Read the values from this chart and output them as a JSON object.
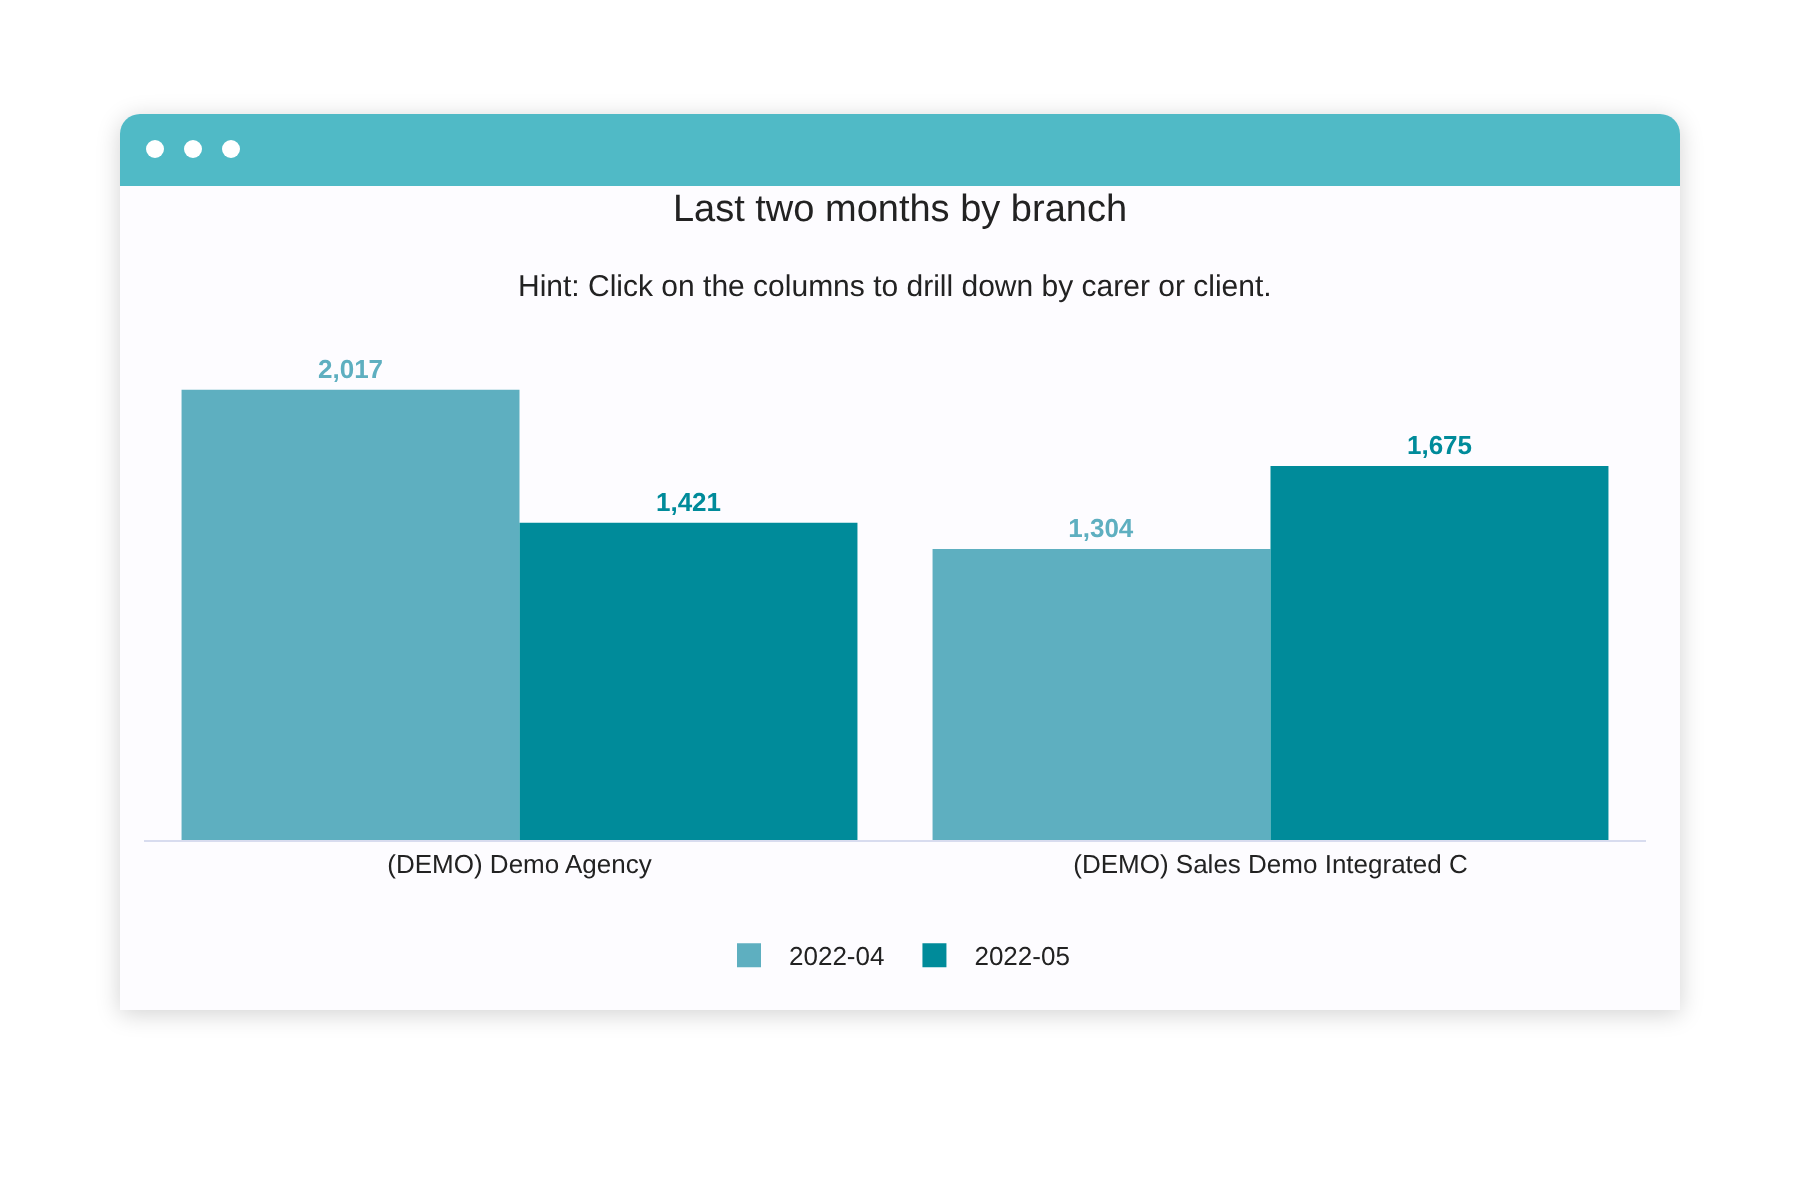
{
  "chart_data": {
    "type": "bar",
    "title": "Last two months by branch",
    "subtitle": "Hint: Click on the columns to drill down by carer or client.",
    "categories": [
      "(DEMO) Demo Agency",
      "(DEMO) Sales Demo Integrated C"
    ],
    "series": [
      {
        "name": "2022-04",
        "color": "#5eafc0",
        "values": [
          2017,
          1304
        ],
        "value_labels": [
          "2,017",
          "1,304"
        ]
      },
      {
        "name": "2022-05",
        "color": "#008b9a",
        "values": [
          1421,
          1675
        ],
        "value_labels": [
          "1,421",
          "1,675"
        ]
      }
    ],
    "legend": "bottom"
  }
}
